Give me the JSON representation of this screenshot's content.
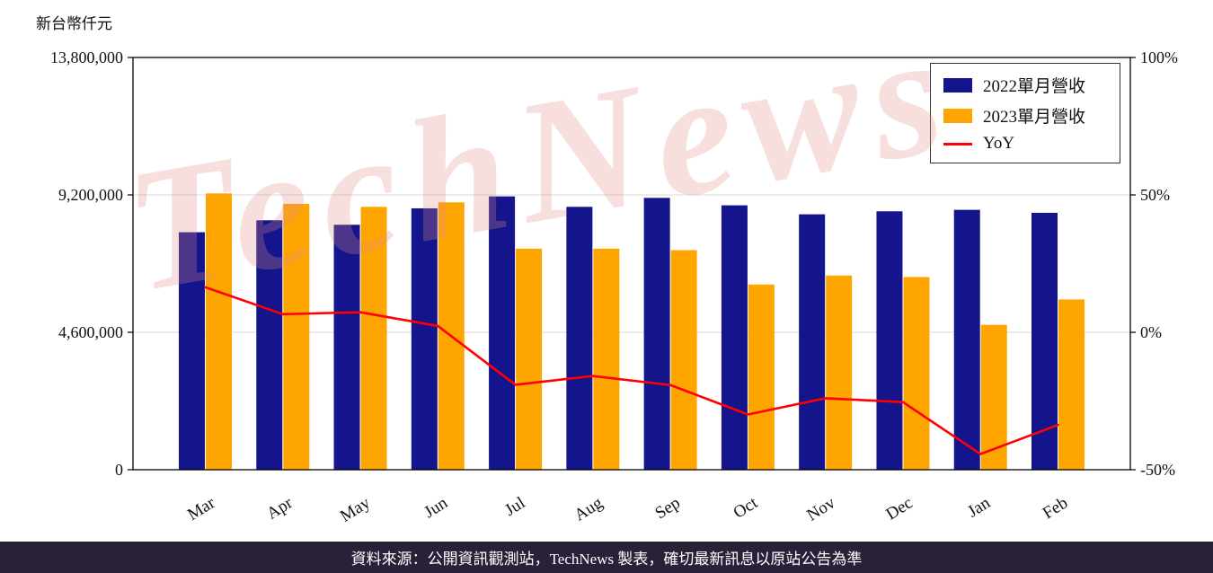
{
  "page": {
    "unit_label": "新台幣仟元",
    "watermark_text": "TechNews",
    "footer_text": "資料來源：公開資訊觀測站，TechNews 製表，確切最新訊息以原站公告為準",
    "footer_background": "#2a2139",
    "watermark_color": "#e08f88"
  },
  "chart_data": {
    "type": "bar+line",
    "title": "",
    "xlabel": "",
    "ylabel_left": "新台幣仟元",
    "categories": [
      "Mar",
      "Apr",
      "May",
      "Jun",
      "Jul",
      "Aug",
      "Sep",
      "Oct",
      "Nov",
      "Dec",
      "Jan",
      "Feb"
    ],
    "series": [
      {
        "name": "2022單月營收",
        "type": "bar",
        "axis": "left",
        "color": "#14148c",
        "values": [
          7950000,
          8350000,
          8200000,
          8750000,
          9150000,
          8800000,
          9100000,
          8850000,
          8550000,
          8650000,
          8700000,
          8600000
        ]
      },
      {
        "name": "2023單月營收",
        "type": "bar",
        "axis": "left",
        "color": "#ffa500",
        "values": [
          9250000,
          8900000,
          8800000,
          8950000,
          7400000,
          7400000,
          7350000,
          6200000,
          6500000,
          6450000,
          4850000,
          5700000
        ]
      },
      {
        "name": "YoY",
        "type": "line",
        "axis": "right",
        "color": "#ff0000",
        "values": [
          16.4,
          6.6,
          7.3,
          2.3,
          -19.1,
          -15.9,
          -19.2,
          -29.9,
          -24.0,
          -25.4,
          -44.3,
          -33.7
        ]
      }
    ],
    "left_axis": {
      "range": [
        0,
        13800000
      ],
      "ticks": [
        0,
        4600000,
        9200000,
        13800000
      ],
      "tick_labels": [
        "0",
        "4,600,000",
        "9,200,000",
        "13,800,000"
      ]
    },
    "right_axis": {
      "range": [
        -50,
        100
      ],
      "ticks": [
        -50,
        0,
        50,
        100
      ],
      "tick_labels": [
        "-50%",
        "0%",
        "50%",
        "100%"
      ]
    },
    "grid": true,
    "grid_color": "#d9d9d9",
    "legend_position": "top-right"
  }
}
